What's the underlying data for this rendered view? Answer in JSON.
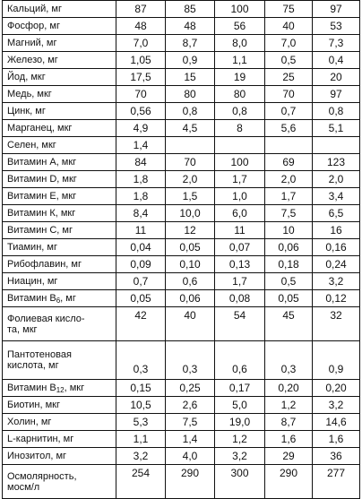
{
  "table": {
    "rows": [
      {
        "label": "Кальций, мг",
        "values": [
          "87",
          "85",
          "100",
          "75",
          "97"
        ]
      },
      {
        "label": "Фосфор, мг",
        "values": [
          "48",
          "48",
          "56",
          "40",
          "53"
        ]
      },
      {
        "label": "Магний, мг",
        "values": [
          "7,0",
          "8,7",
          "8,0",
          "7,0",
          "7,3"
        ]
      },
      {
        "label": "Железо, мг",
        "values": [
          "1,05",
          "0,9",
          "1,1",
          "0,5",
          "0,4"
        ]
      },
      {
        "label": "Йод, мкг",
        "values": [
          "17,5",
          "15",
          "19",
          "25",
          "20"
        ]
      },
      {
        "label": "Медь, мкг",
        "values": [
          "70",
          "80",
          "80",
          "70",
          "97"
        ]
      },
      {
        "label": "Цинк, мг",
        "values": [
          "0,56",
          "0,8",
          "0,8",
          "0,7",
          "0,8"
        ]
      },
      {
        "label": "Марганец, мкг",
        "values": [
          "4,9",
          "4,5",
          "8",
          "5,6",
          "5,1"
        ]
      },
      {
        "label": "Селен, мкг",
        "values": [
          "1,4",
          "",
          "",
          "",
          ""
        ]
      },
      {
        "label": "Витамин А, мкг",
        "values": [
          "84",
          "70",
          "100",
          "69",
          "123"
        ]
      },
      {
        "label": "Витамин D, мкг",
        "values": [
          "1,8",
          "2,0",
          "1,7",
          "2,0",
          "2,0"
        ]
      },
      {
        "label": "Витамин Е, мкг",
        "values": [
          "1,8",
          "1,5",
          "1,0",
          "1,7",
          "3,4"
        ]
      },
      {
        "label": "Витамин К, мкг",
        "values": [
          "8,4",
          "10,0",
          "6,0",
          "7,5",
          "6,5"
        ]
      },
      {
        "label": "Витамин С, мг",
        "values": [
          "11",
          "12",
          "11",
          "10",
          "16"
        ]
      },
      {
        "label": "Тиамин, мг",
        "values": [
          "0,04",
          "0,05",
          "0,07",
          "0,06",
          "0,16"
        ]
      },
      {
        "label": "Рибофлавин, мг",
        "values": [
          "0,09",
          "0,10",
          "0,13",
          "0,18",
          "0,24"
        ]
      },
      {
        "label": "Ниацин, мг",
        "values": [
          "0,7",
          "0,6",
          "1,7",
          "0,5",
          "3,2"
        ]
      },
      {
        "label_prefix": "Витамин В",
        "label_sub": "6",
        "label_suffix": ", мг",
        "values": [
          "0,05",
          "0,06",
          "0,08",
          "0,05",
          "0,12"
        ]
      },
      {
        "label_line1": "Фолиевая кисло-",
        "label_line2": "та, мкг",
        "values": [
          "42",
          "40",
          "54",
          "45",
          "32"
        ]
      },
      {
        "label_line1": "Пантотеновая",
        "label_line2": "кислота, мг",
        "values": [
          "0,3",
          "0,3",
          "0,6",
          "0,3",
          "0,9"
        ]
      },
      {
        "label_prefix": "Витамин В",
        "label_sub": "12",
        "label_suffix": ", мкг",
        "values": [
          "0,15",
          "0,25",
          "0,17",
          "0,20",
          "0,20"
        ]
      },
      {
        "label": "Биотин, мкг",
        "values": [
          "10,5",
          "2,6",
          "5,0",
          "1,2",
          "3,2"
        ]
      },
      {
        "label": "Холин, мг",
        "values": [
          "5,3",
          "7,5",
          "19,0",
          "8,7",
          "14,6"
        ]
      },
      {
        "label": "L-карнитин, мг",
        "values": [
          "1,1",
          "1,4",
          "1,2",
          "1,6",
          "1,6"
        ]
      },
      {
        "label": "Инозитол, мг",
        "values": [
          "3,2",
          "4,0",
          "3,2",
          "29",
          "36"
        ]
      },
      {
        "label_line1": "Осмолярность,",
        "label_line2": "мосм/л",
        "values": [
          "254",
          "290",
          "300",
          "290",
          "277"
        ]
      }
    ]
  }
}
